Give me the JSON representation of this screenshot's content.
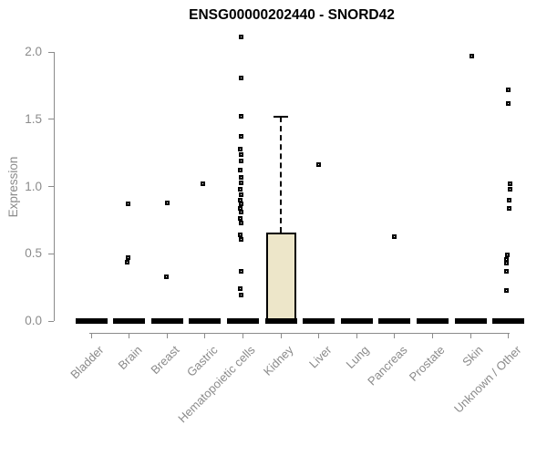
{
  "chart_data": {
    "type": "boxplot",
    "title": "ENSG00000202440 - SNORD42",
    "ylabel": "Expression",
    "yticks": [
      "0.0",
      "0.5",
      "1.0",
      "1.5",
      "2.0"
    ],
    "ytick_values": [
      0.0,
      0.5,
      1.0,
      1.5,
      2.0
    ],
    "ylim": [
      0.0,
      2.15
    ],
    "grid": false,
    "categories": [
      "Bladder",
      "Brain",
      "Breast",
      "Gastric",
      "Hematopoietic cells",
      "Kidney",
      "Liver",
      "Lung",
      "Pancreas",
      "Prostate",
      "Skin",
      "Unknown / Other"
    ],
    "medians": [
      0.0,
      0.0,
      0.0,
      0.0,
      0.0,
      0.0,
      0.0,
      0.0,
      0.0,
      0.0,
      0.0,
      0.0
    ],
    "boxes": [
      {
        "category": "Kidney",
        "category_index": 5,
        "q1": 0.0,
        "median": 0.0,
        "q3": 0.66,
        "whisker_high": 1.52,
        "whisker_low": 0.0
      }
    ],
    "points": [
      {
        "category": "Brain",
        "value": 0.87,
        "jitter": -1
      },
      {
        "category": "Brain",
        "value": 0.47,
        "jitter": -1
      },
      {
        "category": "Brain",
        "value": 0.44,
        "jitter": -2
      },
      {
        "category": "Breast",
        "value": 0.88,
        "jitter": 0
      },
      {
        "category": "Breast",
        "value": 0.33,
        "jitter": -1
      },
      {
        "category": "Gastric",
        "value": 1.02,
        "jitter": -2
      },
      {
        "category": "Hematopoietic cells",
        "value": 2.11,
        "jitter": -2
      },
      {
        "category": "Hematopoietic cells",
        "value": 1.81,
        "jitter": -2
      },
      {
        "category": "Hematopoietic cells",
        "value": 1.52,
        "jitter": -2
      },
      {
        "category": "Hematopoietic cells",
        "value": 1.37,
        "jitter": -2
      },
      {
        "category": "Hematopoietic cells",
        "value": 1.28,
        "jitter": -3
      },
      {
        "category": "Hematopoietic cells",
        "value": 1.24,
        "jitter": -2
      },
      {
        "category": "Hematopoietic cells",
        "value": 1.19,
        "jitter": -2
      },
      {
        "category": "Hematopoietic cells",
        "value": 1.12,
        "jitter": -3
      },
      {
        "category": "Hematopoietic cells",
        "value": 1.07,
        "jitter": -2
      },
      {
        "category": "Hematopoietic cells",
        "value": 1.03,
        "jitter": -2
      },
      {
        "category": "Hematopoietic cells",
        "value": 0.98,
        "jitter": -3
      },
      {
        "category": "Hematopoietic cells",
        "value": 0.94,
        "jitter": -2
      },
      {
        "category": "Hematopoietic cells",
        "value": 0.9,
        "jitter": -3
      },
      {
        "category": "Hematopoietic cells",
        "value": 0.87,
        "jitter": -2
      },
      {
        "category": "Hematopoietic cells",
        "value": 0.84,
        "jitter": -3
      },
      {
        "category": "Hematopoietic cells",
        "value": 0.81,
        "jitter": -2
      },
      {
        "category": "Hematopoietic cells",
        "value": 0.76,
        "jitter": -3
      },
      {
        "category": "Hematopoietic cells",
        "value": 0.73,
        "jitter": -2
      },
      {
        "category": "Hematopoietic cells",
        "value": 0.64,
        "jitter": -3
      },
      {
        "category": "Hematopoietic cells",
        "value": 0.61,
        "jitter": -2
      },
      {
        "category": "Hematopoietic cells",
        "value": 0.37,
        "jitter": -2
      },
      {
        "category": "Hematopoietic cells",
        "value": 0.24,
        "jitter": -3
      },
      {
        "category": "Hematopoietic cells",
        "value": 0.19,
        "jitter": -2
      },
      {
        "category": "Liver",
        "value": 1.16,
        "jitter": 0
      },
      {
        "category": "Pancreas",
        "value": 0.63,
        "jitter": 0
      },
      {
        "category": "Skin",
        "value": 1.97,
        "jitter": 1
      },
      {
        "category": "Unknown / Other",
        "value": 1.72,
        "jitter": 0
      },
      {
        "category": "Unknown / Other",
        "value": 1.62,
        "jitter": 0
      },
      {
        "category": "Unknown / Other",
        "value": 1.02,
        "jitter": 2
      },
      {
        "category": "Unknown / Other",
        "value": 0.98,
        "jitter": 2
      },
      {
        "category": "Unknown / Other",
        "value": 0.9,
        "jitter": 1
      },
      {
        "category": "Unknown / Other",
        "value": 0.84,
        "jitter": 1
      },
      {
        "category": "Unknown / Other",
        "value": 0.49,
        "jitter": -1
      },
      {
        "category": "Unknown / Other",
        "value": 0.46,
        "jitter": -2
      },
      {
        "category": "Unknown / Other",
        "value": 0.43,
        "jitter": -2
      },
      {
        "category": "Unknown / Other",
        "value": 0.37,
        "jitter": -2
      },
      {
        "category": "Unknown / Other",
        "value": 0.23,
        "jitter": -2
      }
    ],
    "colors": {
      "axis": "#8B8B8B",
      "marker": "#000000",
      "median": "#000000",
      "box_fill": "#EDE6C9",
      "box_border": "#000000",
      "title": "#000000"
    }
  }
}
